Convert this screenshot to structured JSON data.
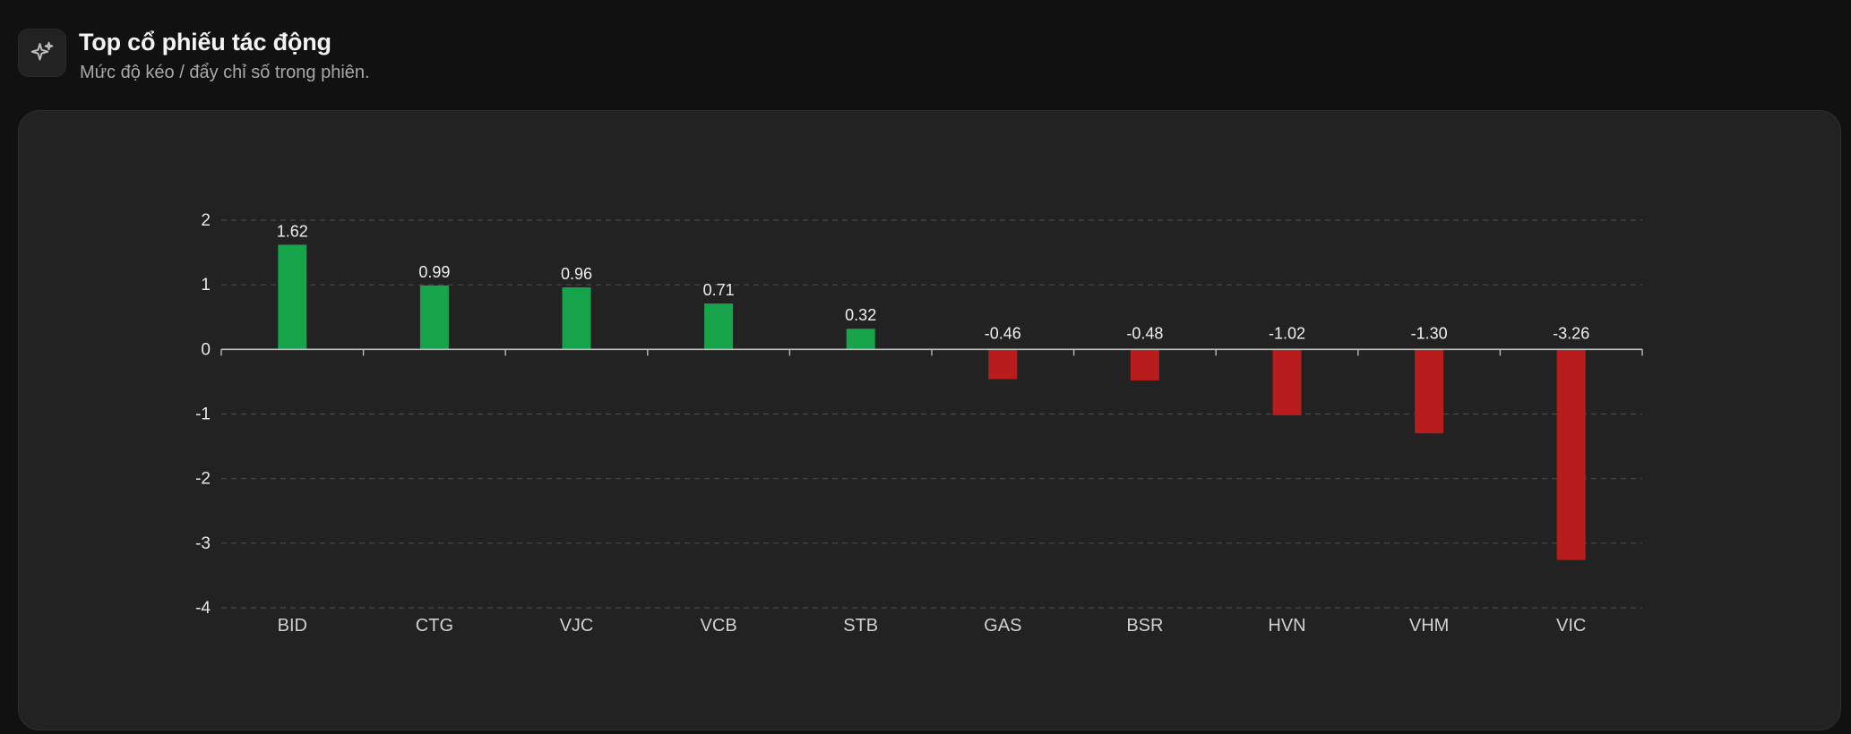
{
  "header": {
    "icon": "sparkles-icon",
    "title": "Top cổ phiếu tác động",
    "subtitle": "Mức độ kéo / đẩy chỉ số trong phiên."
  },
  "colors": {
    "positive": "#16a34a",
    "negative": "#b91c1c",
    "background": "#111111",
    "card": "#222222",
    "grid": "#4a4a4a",
    "axis": "#bdbdbd"
  },
  "chart_data": {
    "type": "bar",
    "title": "",
    "xlabel": "",
    "ylabel": "",
    "categories": [
      "BID",
      "CTG",
      "VJC",
      "VCB",
      "STB",
      "GAS",
      "BSR",
      "HVN",
      "VHM",
      "VIC"
    ],
    "values": [
      1.62,
      0.99,
      0.96,
      0.71,
      0.32,
      -0.46,
      -0.48,
      -1.02,
      -1.3,
      -3.26
    ],
    "value_labels": [
      "1.62",
      "0.99",
      "0.96",
      "0.71",
      "0.32",
      "-0.46",
      "-0.48",
      "-1.02",
      "-1.30",
      "-3.26"
    ],
    "ylim": [
      -4,
      2
    ],
    "yticks": [
      2,
      1,
      0,
      -1,
      -2,
      -3,
      -4
    ],
    "grid": "horizontal-dashed",
    "legend": "none"
  }
}
